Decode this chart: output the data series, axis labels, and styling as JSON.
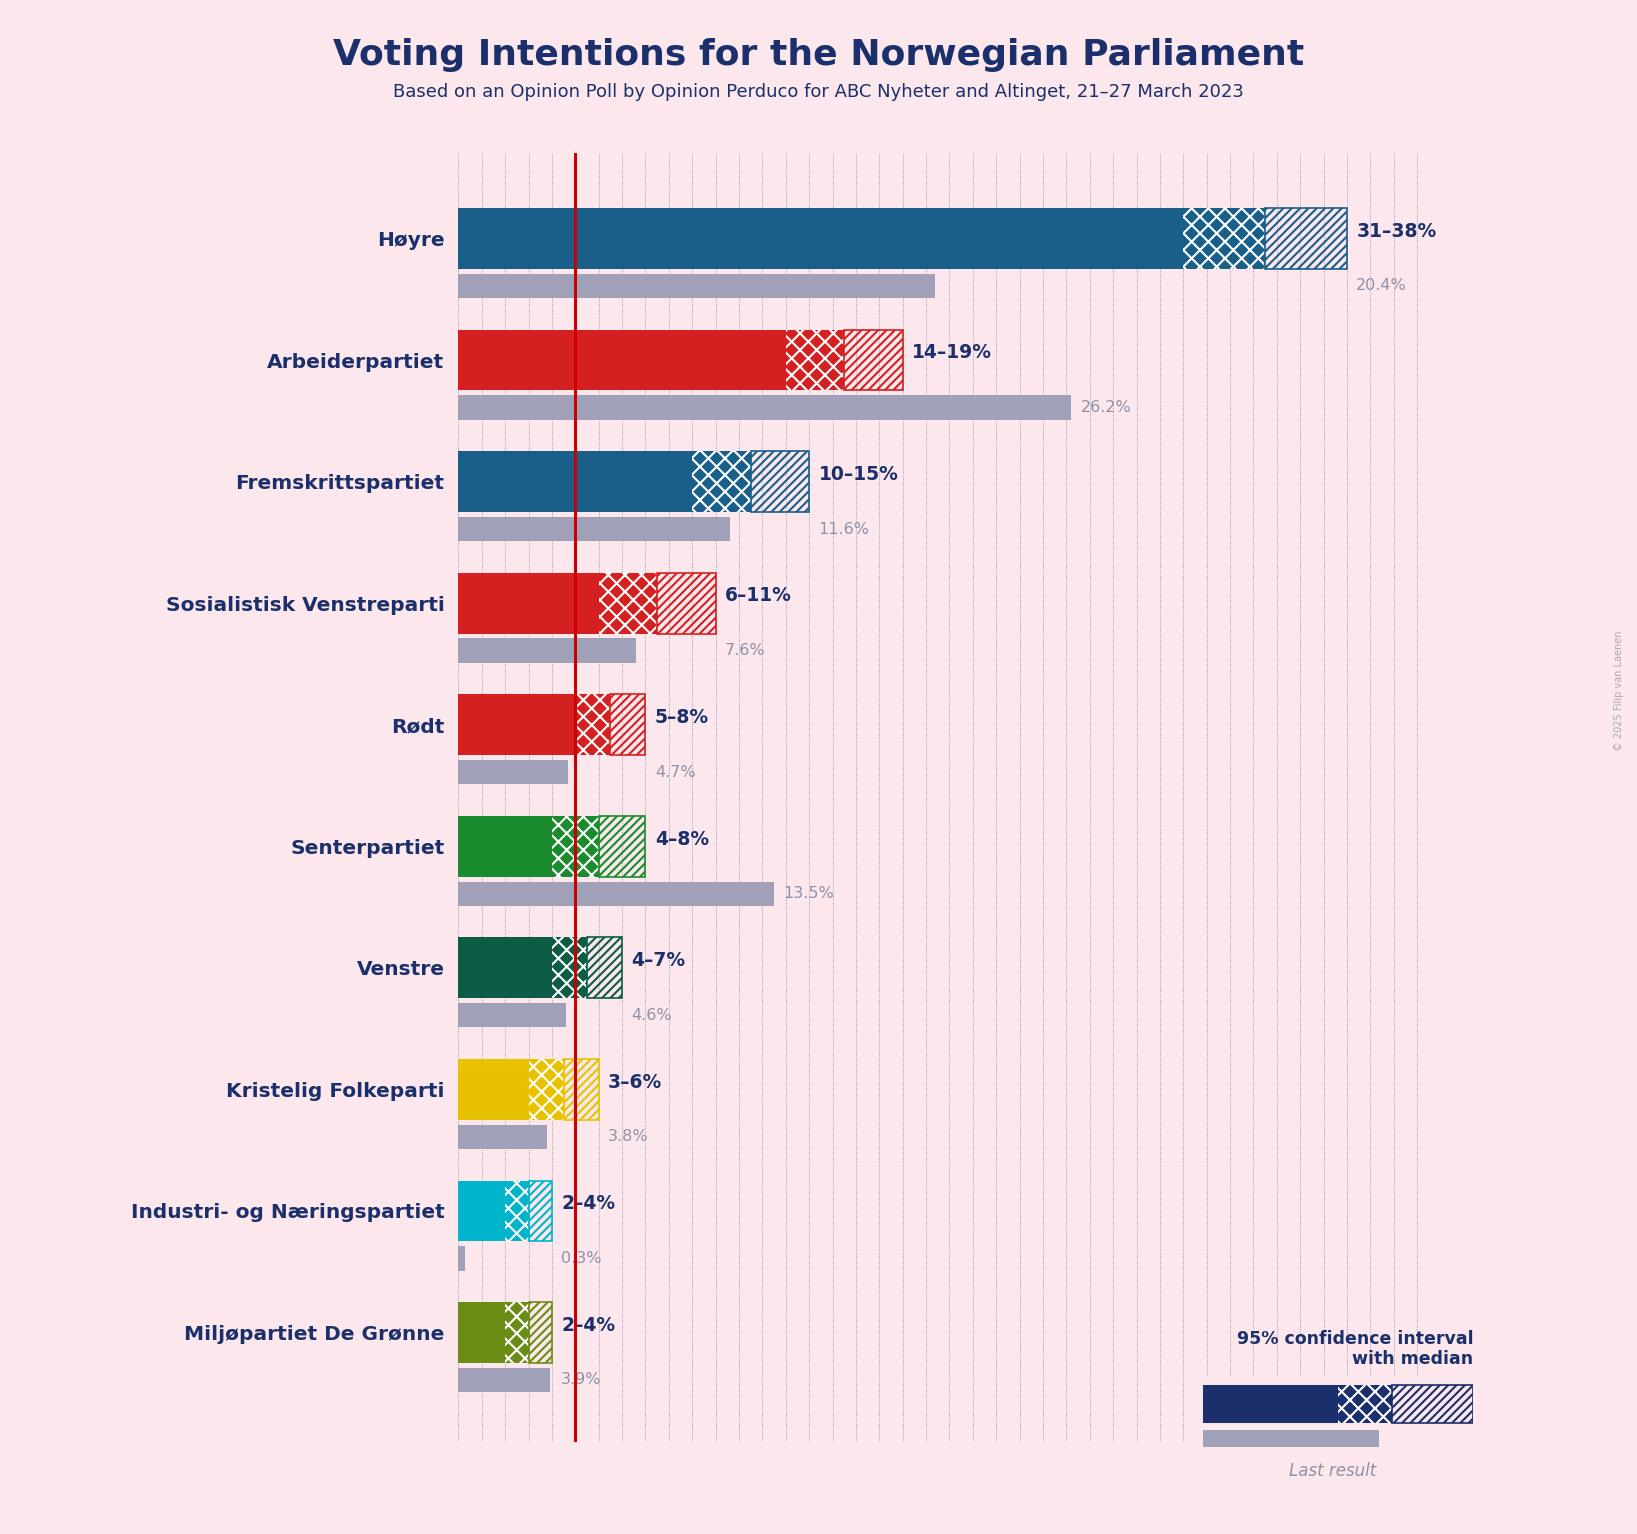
{
  "title": "Voting Intentions for the Norwegian Parliament",
  "subtitle": "Based on an Opinion Poll by Opinion Perduco for ABC Nyheter and Altinget, 21–27 March 2023",
  "background_color": "#fce8ec",
  "title_color": "#1a2f6b",
  "parties": [
    {
      "name": "Høyre",
      "ci_low": 31,
      "ci_high": 38,
      "median": 34.5,
      "last": 20.4,
      "color": "#1a5f8a",
      "label": "31–38%",
      "last_label": "20.4%"
    },
    {
      "name": "Arbeiderpartiet",
      "ci_low": 14,
      "ci_high": 19,
      "median": 16.5,
      "last": 26.2,
      "color": "#d42020",
      "label": "14–19%",
      "last_label": "26.2%"
    },
    {
      "name": "Fremskrittspartiet",
      "ci_low": 10,
      "ci_high": 15,
      "median": 12.5,
      "last": 11.6,
      "color": "#1a5f8a",
      "label": "10–15%",
      "last_label": "11.6%"
    },
    {
      "name": "Sosialistisk Venstreparti",
      "ci_low": 6,
      "ci_high": 11,
      "median": 8.5,
      "last": 7.6,
      "color": "#d42020",
      "label": "6–11%",
      "last_label": "7.6%"
    },
    {
      "name": "Rødt",
      "ci_low": 5,
      "ci_high": 8,
      "median": 6.5,
      "last": 4.7,
      "color": "#d42020",
      "label": "5–8%",
      "last_label": "4.7%"
    },
    {
      "name": "Senterpartiet",
      "ci_low": 4,
      "ci_high": 8,
      "median": 6.0,
      "last": 13.5,
      "color": "#1a8c2e",
      "label": "4–8%",
      "last_label": "13.5%"
    },
    {
      "name": "Venstre",
      "ci_low": 4,
      "ci_high": 7,
      "median": 5.5,
      "last": 4.6,
      "color": "#0d5c46",
      "label": "4–7%",
      "last_label": "4.6%"
    },
    {
      "name": "Kristelig Folkeparti",
      "ci_low": 3,
      "ci_high": 6,
      "median": 4.5,
      "last": 3.8,
      "color": "#e8c200",
      "label": "3–6%",
      "last_label": "3.8%"
    },
    {
      "name": "Industri- og Næringspartiet",
      "ci_low": 2,
      "ci_high": 4,
      "median": 3.0,
      "last": 0.3,
      "color": "#00b4cc",
      "label": "2–4%",
      "last_label": "0.3%"
    },
    {
      "name": "Miljøpartiet De Grønne",
      "ci_low": 2,
      "ci_high": 4,
      "median": 3.0,
      "last": 3.9,
      "color": "#6b8c14",
      "label": "2–4%",
      "last_label": "3.9%"
    }
  ],
  "red_line_x": 5.0,
  "xlim_max": 42,
  "axis_color": "#1a2f6b",
  "red_line_color": "#cc0000",
  "last_bar_color": "#a0a0b8",
  "last_bar_color_light": "#c0b0b8",
  "label_color": "#1a2f6b",
  "last_label_color": "#9090a8",
  "legend_text": "95% confidence interval\nwith median",
  "legend_last": "Last result",
  "legend_bar_color": "#1a2f6b",
  "copyright": "© 2025 Filip van Laenen"
}
